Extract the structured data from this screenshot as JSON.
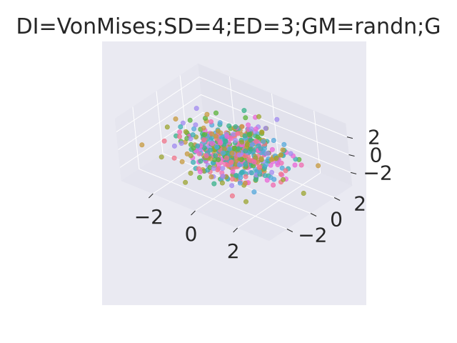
{
  "chart_data": {
    "type": "scatter",
    "projection": "3d",
    "title": "DI=VonMises;SD=4;ED=3;GM=randn;G",
    "xlabel": "",
    "ylabel": "",
    "zlabel": "",
    "x_ticks": [
      "−2",
      "0",
      "2"
    ],
    "y_ticks": [
      "−2",
      "0",
      "2"
    ],
    "z_ticks": [
      "−2",
      "0",
      "2"
    ],
    "xlim": [
      -3.5,
      3.5
    ],
    "ylim": [
      -3.5,
      3.5
    ],
    "zlim": [
      -3.5,
      3.5
    ],
    "grid": true,
    "legend": "none",
    "point_count": 600,
    "series_colors": [
      "#f0748a",
      "#c79a3f",
      "#9ca532",
      "#5cb43c",
      "#3ab38b",
      "#3eafb4",
      "#55a8db",
      "#a28bf0",
      "#e968d7",
      "#f06bb0"
    ],
    "pane_color": "#eaeaf2",
    "grid_color": "#ffffff"
  }
}
